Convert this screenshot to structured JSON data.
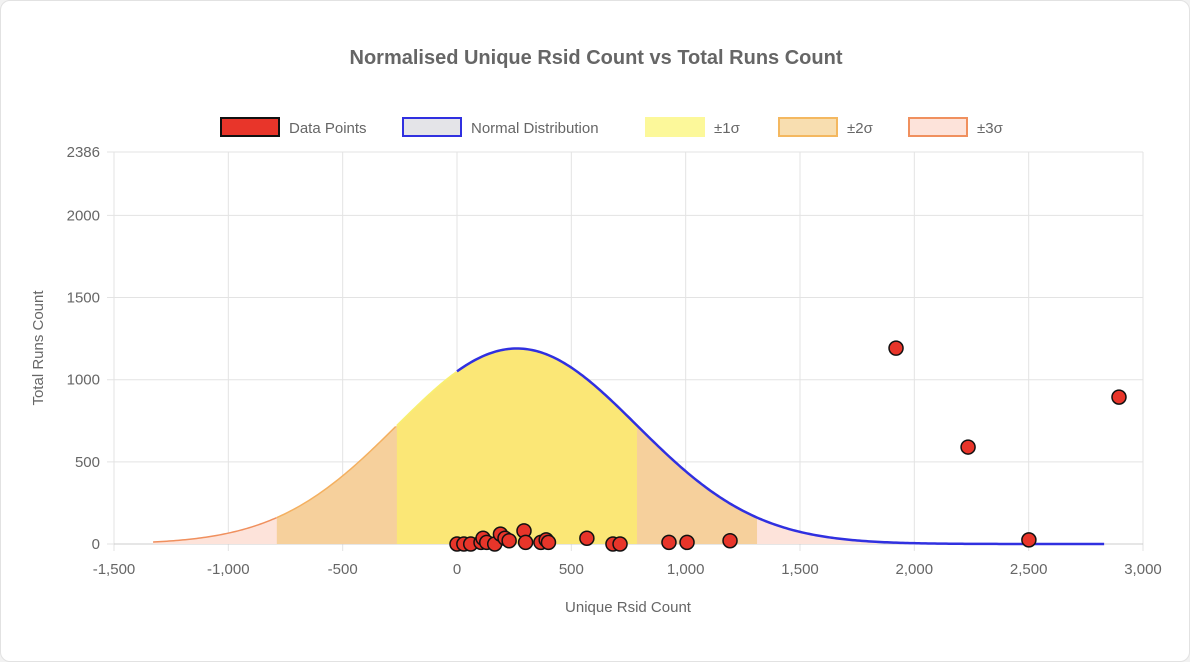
{
  "chart_data": {
    "type": "scatter",
    "title": "Normalised Unique Rsid Count vs Total Runs Count",
    "xlabel": "Unique Rsid Count",
    "ylabel": "Total Runs Count",
    "xlim": [
      -1500,
      3000
    ],
    "ylim": [
      0,
      2386
    ],
    "xticks": [
      "-1,500",
      "-1,000",
      "-500",
      "0",
      "500",
      "1,000",
      "1,500",
      "2,000",
      "2,500",
      "3,000"
    ],
    "xtick_values": [
      -1500,
      -1000,
      -500,
      0,
      500,
      1000,
      1500,
      2000,
      2500,
      3000
    ],
    "yticks": [
      "0",
      "500",
      "1000",
      "1500",
      "2000",
      "2386"
    ],
    "ytick_values": [
      0,
      500,
      1000,
      1500,
      2000,
      2386
    ],
    "grid": true,
    "legend_position": "top",
    "legend": [
      {
        "label": "Data Points",
        "fill": "#e8352a",
        "stroke": "#111111"
      },
      {
        "label": "Normal Distribution",
        "fill": "#e4e4e8",
        "stroke": "#3030e0"
      },
      {
        "label": "±1σ",
        "fill": "#fcf89a",
        "stroke": "#fcf89a"
      },
      {
        "label": "±2σ",
        "fill": "#f8deb0",
        "stroke": "#f4b860"
      },
      {
        "label": "±3σ",
        "fill": "#fde3da",
        "stroke": "#f0905e"
      }
    ],
    "normal": {
      "mean": 262,
      "sigma": 525,
      "peak": 1190,
      "x_start": -1329,
      "x_end": 2838
    },
    "points": [
      [
        0,
        0
      ],
      [
        30,
        0
      ],
      [
        60,
        0
      ],
      [
        105,
        10
      ],
      [
        114,
        35
      ],
      [
        130,
        10
      ],
      [
        165,
        0
      ],
      [
        190,
        60
      ],
      [
        210,
        35
      ],
      [
        228,
        20
      ],
      [
        293,
        80
      ],
      [
        300,
        10
      ],
      [
        367,
        10
      ],
      [
        390,
        25
      ],
      [
        400,
        10
      ],
      [
        568,
        35
      ],
      [
        682,
        0
      ],
      [
        713,
        0
      ],
      [
        927,
        10
      ],
      [
        1006,
        10
      ],
      [
        1194,
        20
      ],
      [
        1920,
        1192
      ],
      [
        2235,
        590
      ],
      [
        2501,
        25
      ],
      [
        2895,
        894
      ]
    ]
  }
}
